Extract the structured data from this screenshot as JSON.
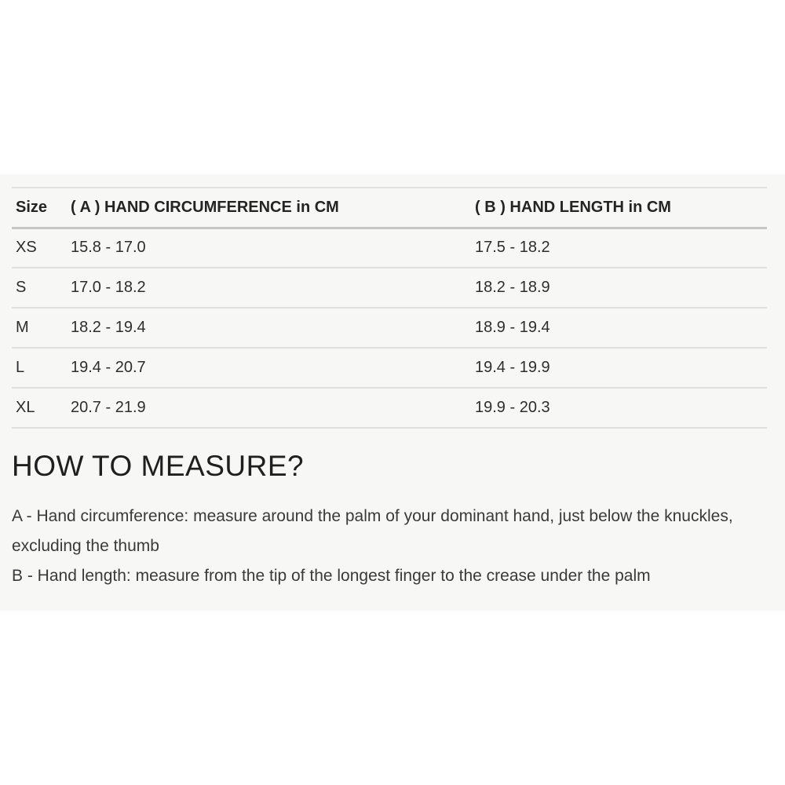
{
  "size_chart": {
    "columns": [
      "Size",
      "( A ) HAND CIRCUMFERENCE in CM",
      "( B ) HAND LENGTH in CM"
    ],
    "rows": [
      {
        "size": "XS",
        "circumference": "15.8 - 17.0",
        "length": "17.5 - 18.2"
      },
      {
        "size": "S",
        "circumference": "17.0 - 18.2",
        "length": "18.2 - 18.9"
      },
      {
        "size": "M",
        "circumference": "18.2 - 19.4",
        "length": "18.9 - 19.4"
      },
      {
        "size": "L",
        "circumference": "19.4 - 20.7",
        "length": "19.4 - 19.9"
      },
      {
        "size": "XL",
        "circumference": "20.7 - 21.9",
        "length": "19.9 - 20.3"
      }
    ]
  },
  "how_to_measure": {
    "heading": "HOW TO MEASURE?",
    "instruction_a": "A - Hand circumference: measure around the palm of your dominant hand, just below the knuckles, excluding the thumb",
    "instruction_b": "B - Hand length: measure from the tip of the longest finger to the crease under the palm"
  },
  "colors": {
    "panel_background": "#f7f7f6",
    "divider": "#e0e0df",
    "header_divider": "#c6c6c5",
    "text": "#2e2e2e"
  }
}
